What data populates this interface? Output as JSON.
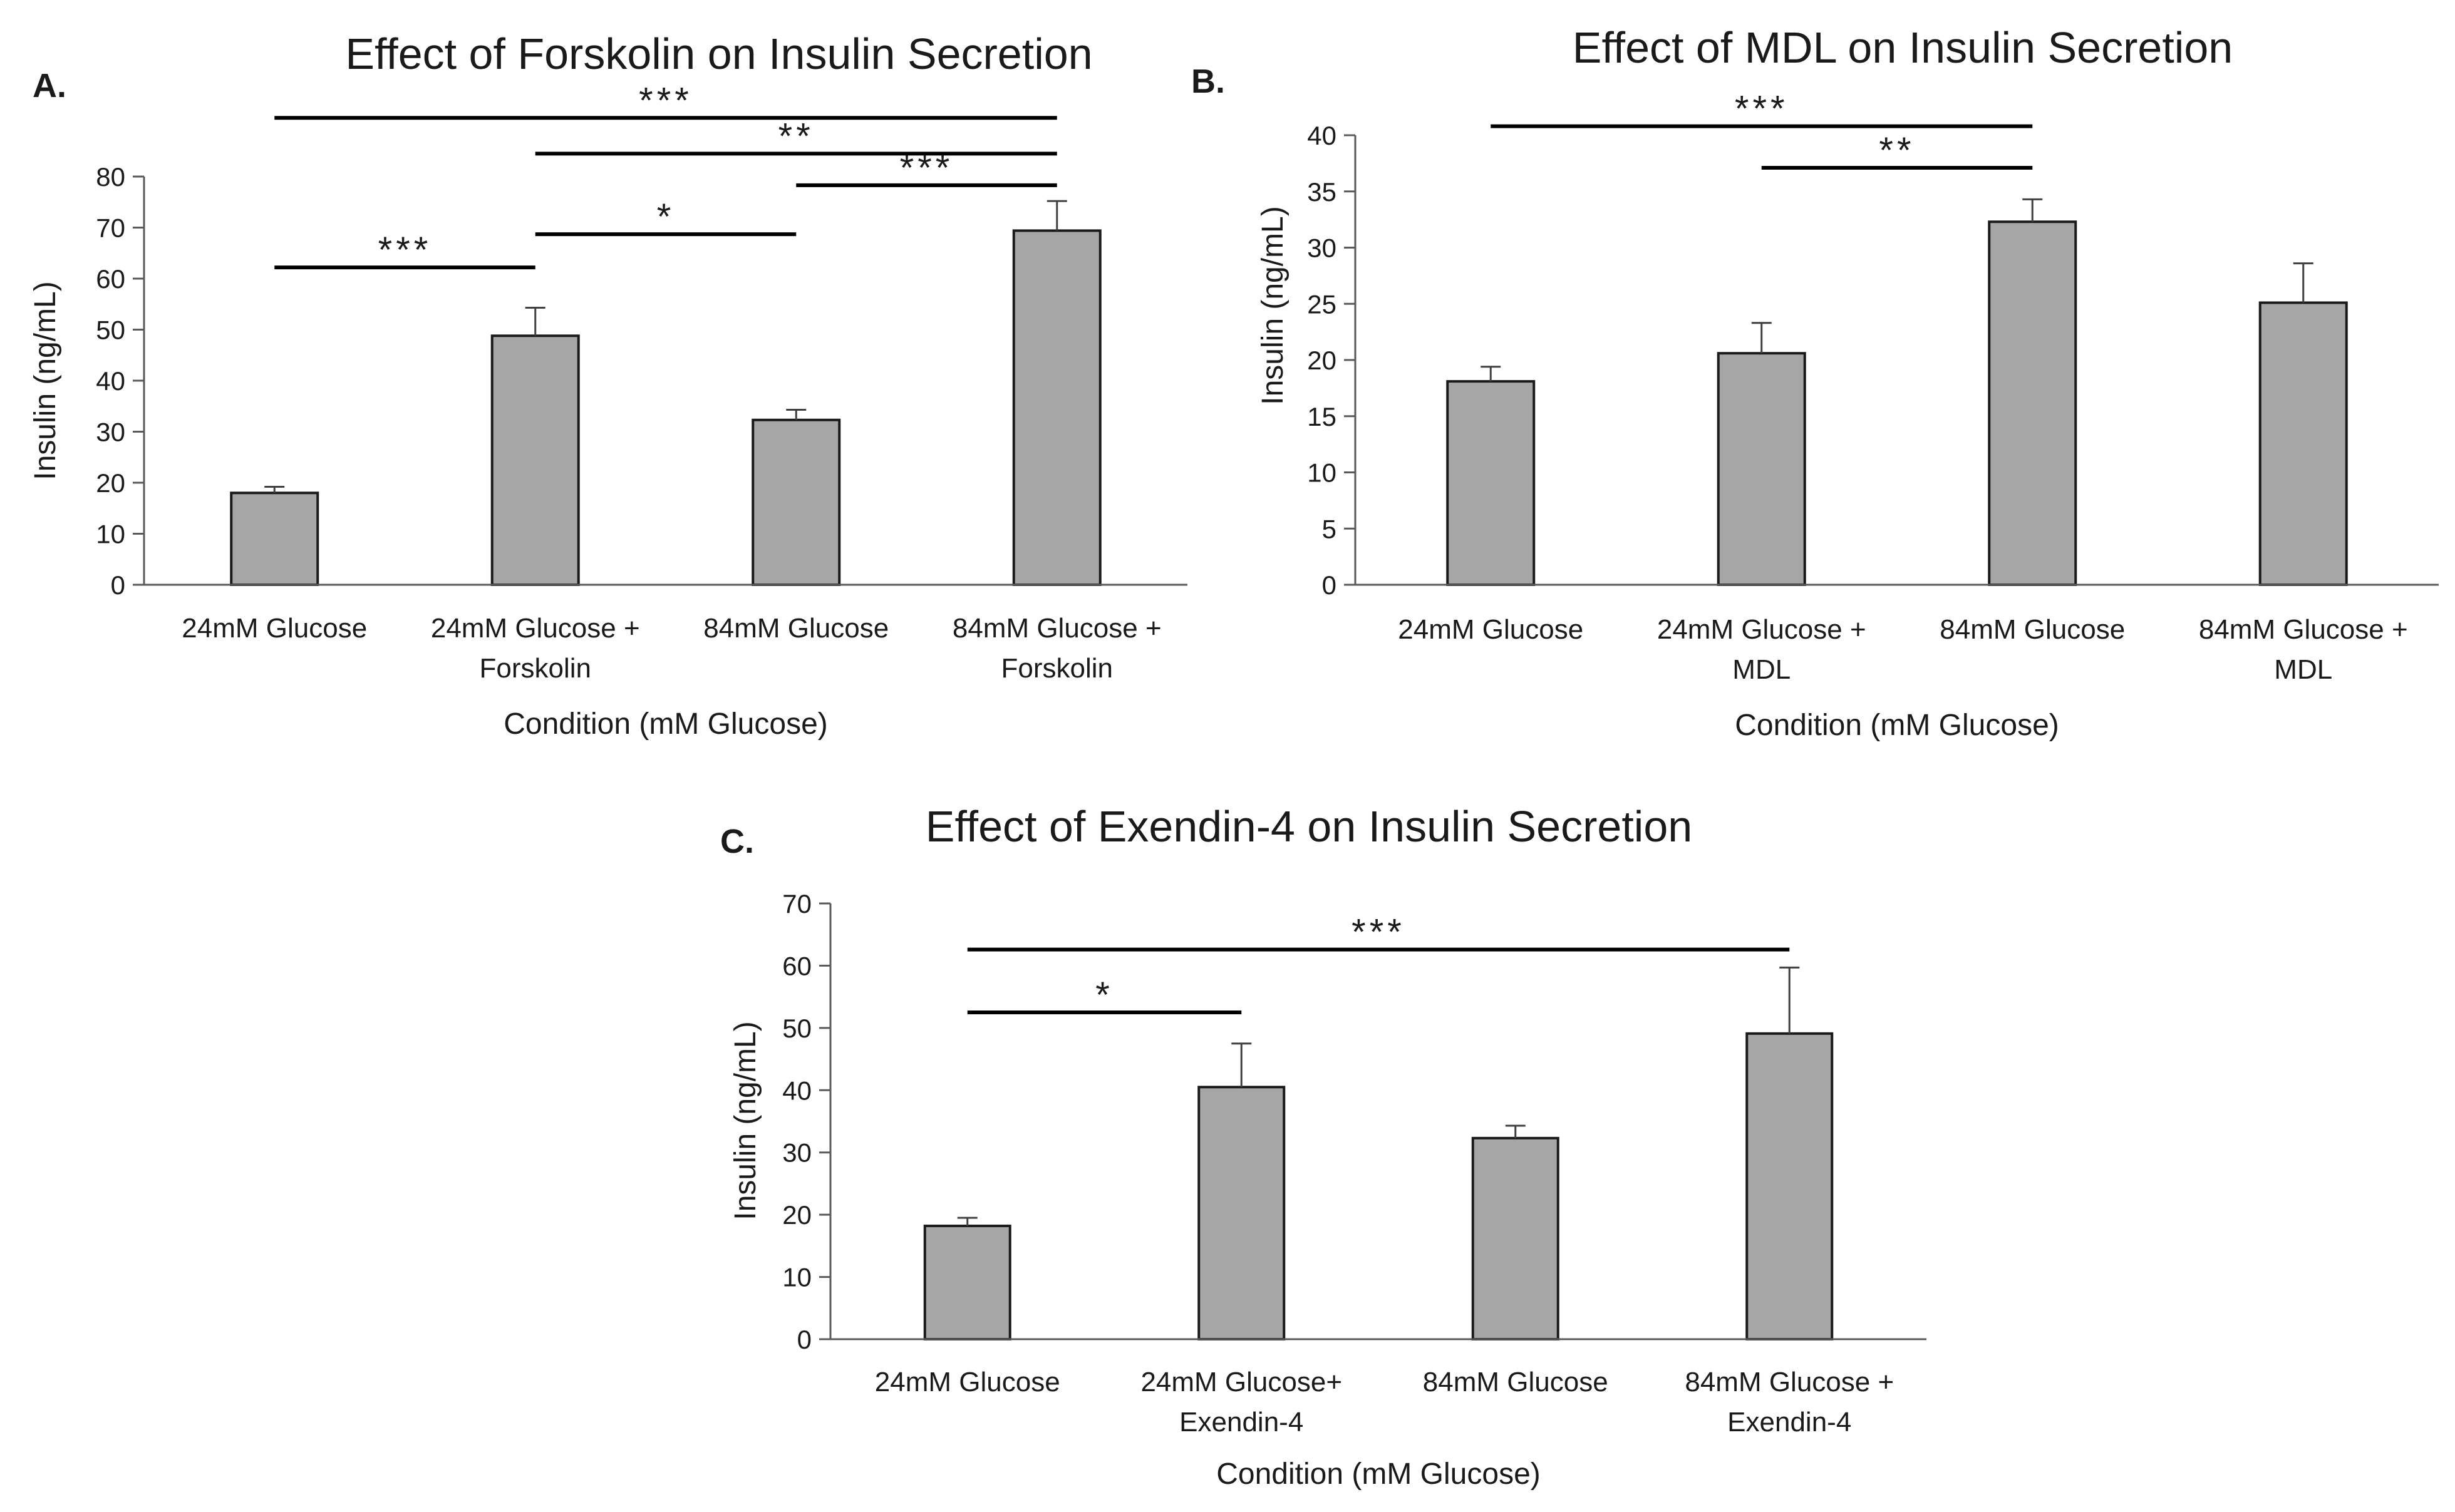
{
  "chart_data": [
    {
      "id": "A",
      "type": "bar",
      "panel_label": "A.",
      "title": "Effect of Forskolin on Insulin Secretion",
      "xlabel": "Condition (mM Glucose)",
      "ylabel": "Insulin (ng/mL)",
      "ylim": [
        0,
        80
      ],
      "yticks": [
        0,
        10,
        20,
        30,
        40,
        50,
        60,
        70,
        80
      ],
      "categories": [
        [
          "24mM Glucose"
        ],
        [
          "24mM Glucose +",
          "Forskolin"
        ],
        [
          "84mM Glucose"
        ],
        [
          "84mM Glucose +",
          "Forskolin"
        ]
      ],
      "values": [
        18.0,
        48.8,
        32.3,
        69.4
      ],
      "errors": [
        1.2,
        5.5,
        2.0,
        5.8
      ],
      "bar_color": "#a6a6a6",
      "significance": [
        {
          "from": 0,
          "to": 3,
          "y": 91.5,
          "label": "***"
        },
        {
          "from": 1,
          "to": 3,
          "y": 84.5,
          "label": "**"
        },
        {
          "from": 2,
          "to": 3,
          "y": 78.3,
          "label": "***"
        },
        {
          "from": 1,
          "to": 2,
          "y": 68.7,
          "label": "*"
        },
        {
          "from": 0,
          "to": 1,
          "y": 62.2,
          "label": "***"
        }
      ]
    },
    {
      "id": "B",
      "type": "bar",
      "panel_label": "B.",
      "title": "Effect of MDL on Insulin Secretion",
      "xlabel": "Condition (mM Glucose)",
      "ylabel": "Insulin (ng/mL)",
      "ylim": [
        0,
        40
      ],
      "yticks": [
        0,
        5,
        10,
        15,
        20,
        25,
        30,
        35,
        40
      ],
      "categories": [
        [
          "24mM Glucose"
        ],
        [
          "24mM Glucose +",
          "MDL"
        ],
        [
          "84mM Glucose"
        ],
        [
          "84mM Glucose +",
          "MDL"
        ]
      ],
      "values": [
        18.1,
        20.6,
        32.3,
        25.1
      ],
      "errors": [
        1.3,
        2.7,
        2.0,
        3.5
      ],
      "bar_color": "#a6a6a6",
      "significance": [
        {
          "from": 0,
          "to": 2,
          "y": 40.8,
          "label": "***"
        },
        {
          "from": 1,
          "to": 2,
          "y": 37.1,
          "label": "**"
        }
      ]
    },
    {
      "id": "C",
      "type": "bar",
      "panel_label": "C.",
      "title": "Effect of Exendin-4 on Insulin Secretion",
      "xlabel": "Condition (mM Glucose)",
      "ylabel": "Insulin (ng/mL)",
      "ylim": [
        0,
        70
      ],
      "yticks": [
        0,
        10,
        20,
        30,
        40,
        50,
        60,
        70
      ],
      "categories": [
        [
          "24mM Glucose"
        ],
        [
          "24mM Glucose+",
          "Exendin-4"
        ],
        [
          "84mM Glucose"
        ],
        [
          "84mM Glucose +",
          "Exendin-4"
        ]
      ],
      "values": [
        18.2,
        40.5,
        32.3,
        49.1
      ],
      "errors": [
        1.3,
        7.0,
        2.0,
        10.6
      ],
      "bar_color": "#a6a6a6",
      "significance": [
        {
          "from": 0,
          "to": 3,
          "y": 62.6,
          "label": "***"
        },
        {
          "from": 0,
          "to": 1,
          "y": 52.5,
          "label": "*"
        }
      ]
    }
  ]
}
